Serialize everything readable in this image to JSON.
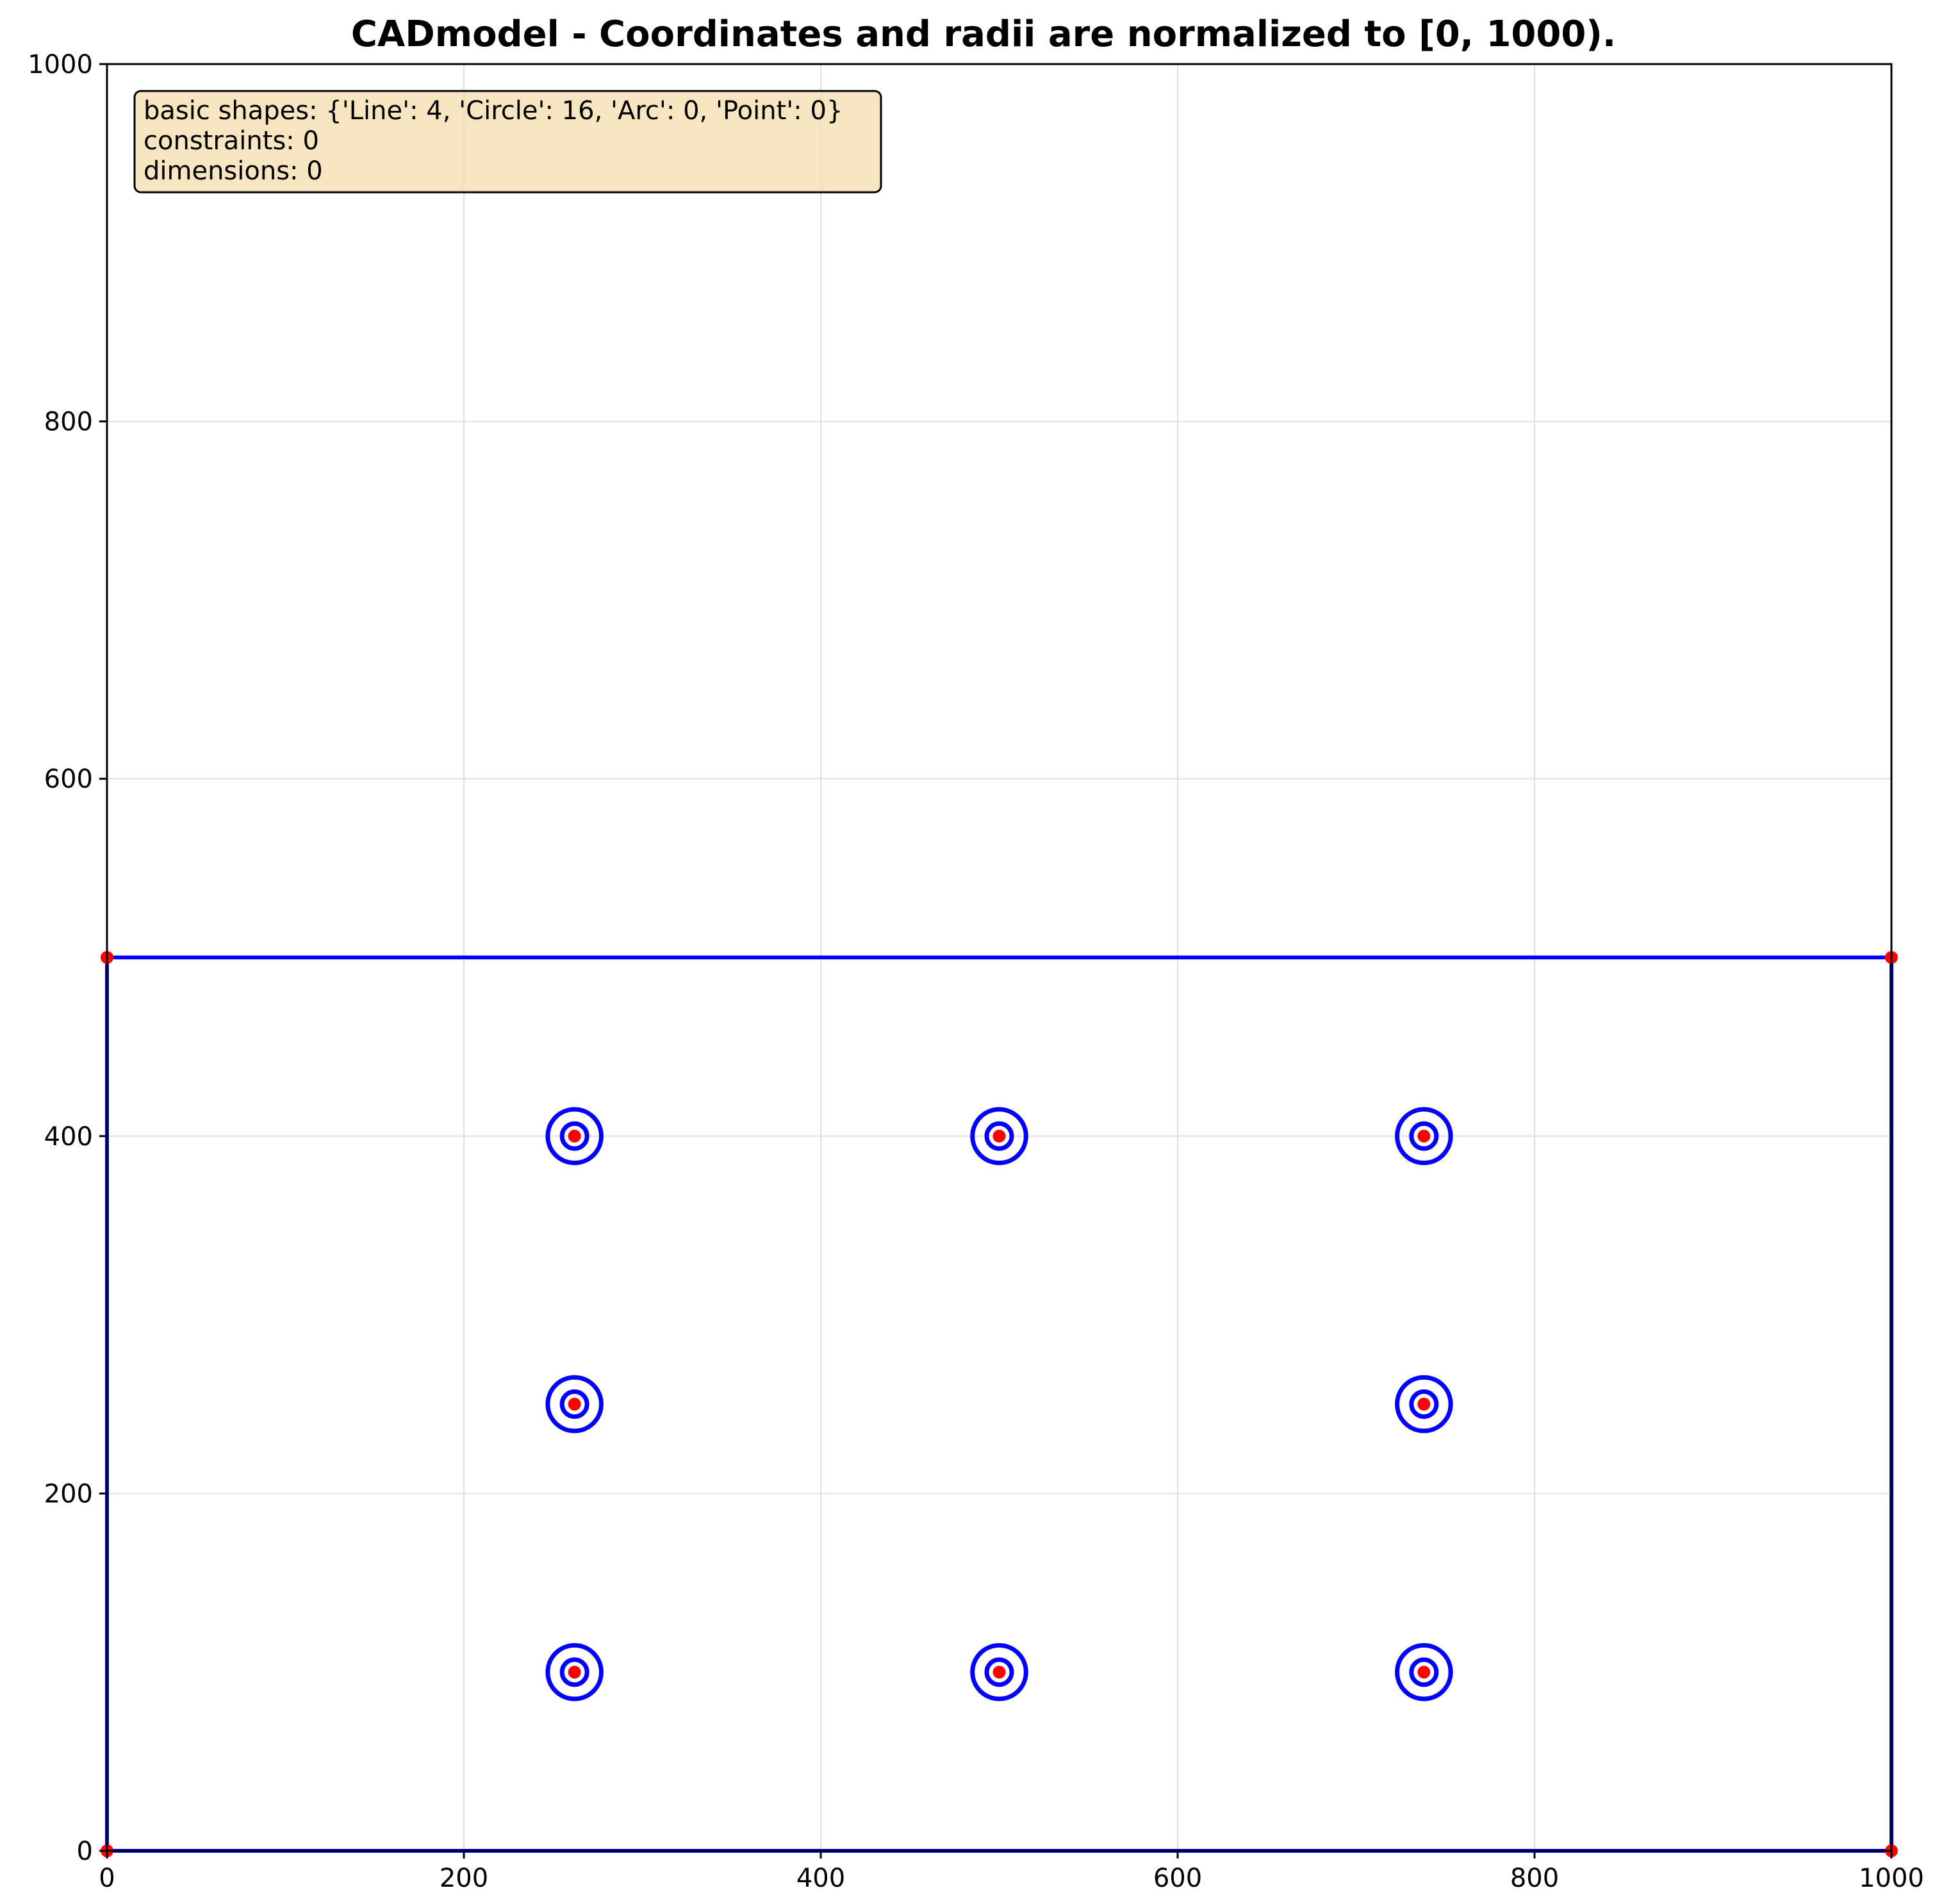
{
  "chart_data": {
    "type": "diagram",
    "title": "CADmodel - Coordinates and radii are normalized to [0, 1000).",
    "xlim": [
      0,
      1000
    ],
    "ylim": [
      0,
      1000
    ],
    "x_ticks": [
      "0",
      "200",
      "400",
      "600",
      "800",
      "1000"
    ],
    "y_ticks": [
      "0",
      "200",
      "400",
      "600",
      "800",
      "1000"
    ],
    "grid": true,
    "info_box": {
      "lines": [
        "basic shapes: {'Line': 4, 'Circle': 16, 'Arc': 0, 'Point': 0}",
        "constraints: 0",
        "dimensions: 0"
      ],
      "placement": "top-left"
    },
    "colors": {
      "shape": "#0000ff",
      "point": "#ff0000",
      "grid": "#e0e0e0",
      "info_box_fill": "#f5deb3",
      "info_box_edge": "#000000"
    },
    "lines": [
      {
        "x1": 0,
        "y1": 0,
        "x2": 1000,
        "y2": 0
      },
      {
        "x1": 1000,
        "y1": 0,
        "x2": 1000,
        "y2": 500
      },
      {
        "x1": 1000,
        "y1": 500,
        "x2": 0,
        "y2": 500
      },
      {
        "x1": 0,
        "y1": 500,
        "x2": 0,
        "y2": 0
      }
    ],
    "circles": [
      {
        "cx": 262,
        "cy": 400,
        "r": 15
      },
      {
        "cx": 262,
        "cy": 400,
        "r": 7
      },
      {
        "cx": 500,
        "cy": 400,
        "r": 15
      },
      {
        "cx": 500,
        "cy": 400,
        "r": 7
      },
      {
        "cx": 738,
        "cy": 400,
        "r": 15
      },
      {
        "cx": 738,
        "cy": 400,
        "r": 7
      },
      {
        "cx": 262,
        "cy": 250,
        "r": 15
      },
      {
        "cx": 262,
        "cy": 250,
        "r": 7
      },
      {
        "cx": 738,
        "cy": 250,
        "r": 15
      },
      {
        "cx": 738,
        "cy": 250,
        "r": 7
      },
      {
        "cx": 262,
        "cy": 100,
        "r": 15
      },
      {
        "cx": 262,
        "cy": 100,
        "r": 7
      },
      {
        "cx": 500,
        "cy": 100,
        "r": 15
      },
      {
        "cx": 500,
        "cy": 100,
        "r": 7
      },
      {
        "cx": 738,
        "cy": 100,
        "r": 15
      },
      {
        "cx": 738,
        "cy": 100,
        "r": 7
      }
    ],
    "points": [
      {
        "x": 0,
        "y": 0
      },
      {
        "x": 1000,
        "y": 0
      },
      {
        "x": 1000,
        "y": 500
      },
      {
        "x": 0,
        "y": 500
      },
      {
        "x": 262,
        "y": 400
      },
      {
        "x": 500,
        "y": 400
      },
      {
        "x": 738,
        "y": 400
      },
      {
        "x": 262,
        "y": 250
      },
      {
        "x": 738,
        "y": 250
      },
      {
        "x": 262,
        "y": 100
      },
      {
        "x": 500,
        "y": 100
      },
      {
        "x": 738,
        "y": 100
      }
    ]
  }
}
